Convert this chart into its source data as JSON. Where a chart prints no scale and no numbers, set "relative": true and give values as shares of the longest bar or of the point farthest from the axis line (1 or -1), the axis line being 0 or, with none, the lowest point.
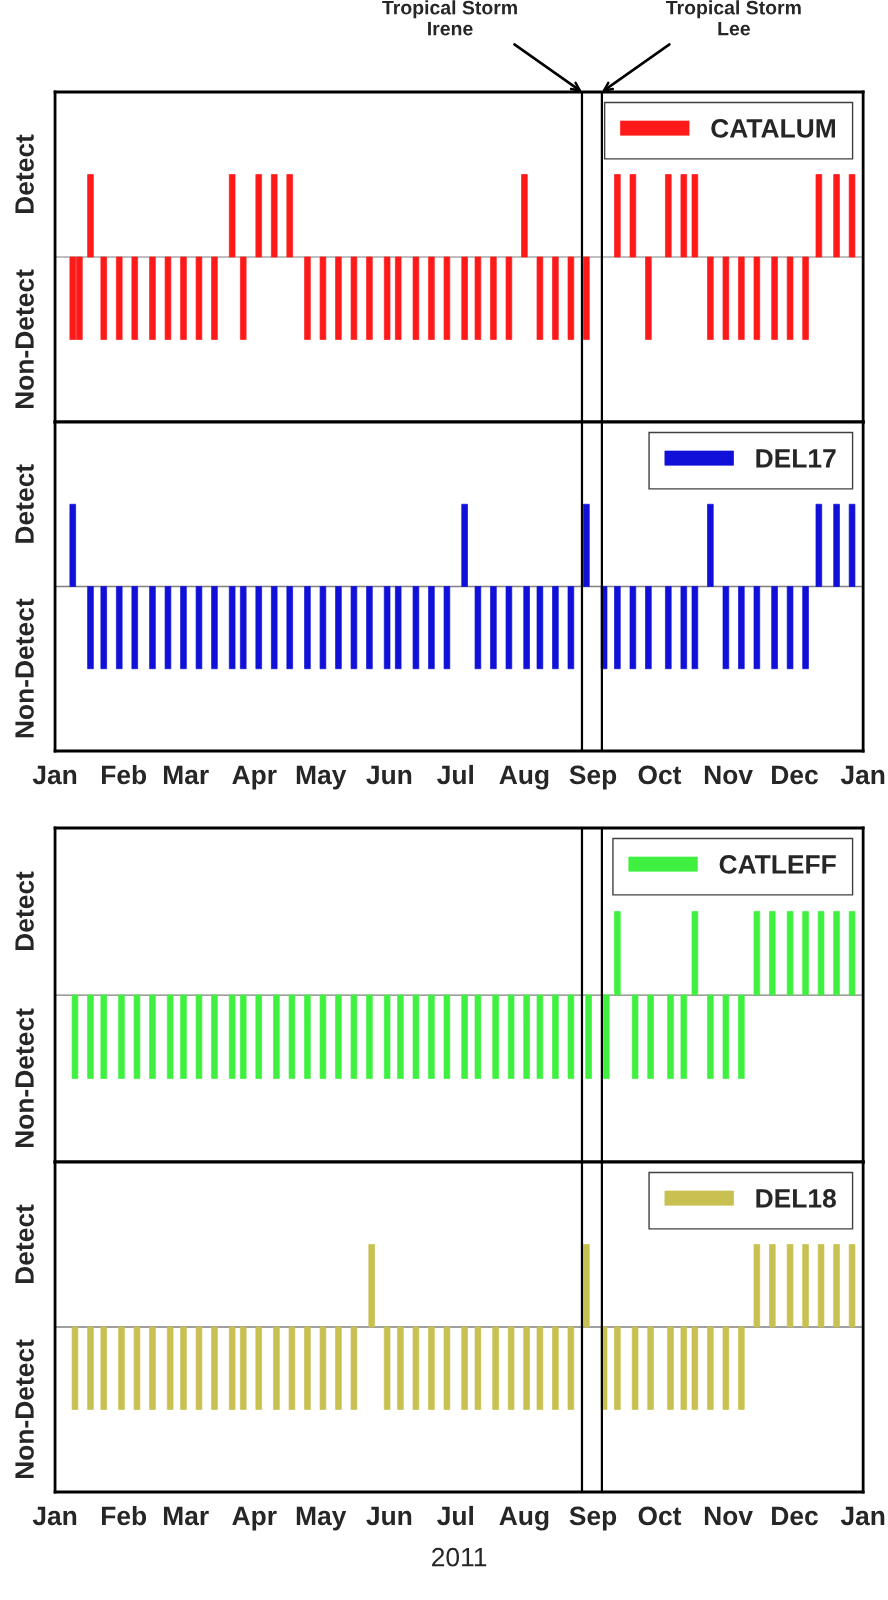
{
  "chart_data": [
    {
      "type": "bar",
      "relative": true,
      "x": [
        "2011-01-09",
        "2011-01-12",
        "2011-01-17",
        "2011-01-23",
        "2011-01-30",
        "2011-02-06",
        "2011-02-14",
        "2011-02-21",
        "2011-02-28",
        "2011-03-07",
        "2011-03-14",
        "2011-03-22",
        "2011-03-27",
        "2011-04-03",
        "2011-04-10",
        "2011-04-17",
        "2011-04-25",
        "2011-05-02",
        "2011-05-09",
        "2011-05-16",
        "2011-05-23",
        "2011-05-31",
        "2011-06-05",
        "2011-06-13",
        "2011-06-20",
        "2011-06-27",
        "2011-07-05",
        "2011-07-11",
        "2011-07-18",
        "2011-07-25",
        "2011-08-01",
        "2011-08-08",
        "2011-08-15",
        "2011-08-22",
        "2011-08-29",
        "2011-09-12",
        "2011-09-19",
        "2011-09-26",
        "2011-10-05",
        "2011-10-12",
        "2011-10-17",
        "2011-10-24",
        "2011-10-31",
        "2011-11-07",
        "2011-11-14",
        "2011-11-22",
        "2011-11-29",
        "2011-12-06",
        "2011-12-12",
        "2011-12-20",
        "2011-12-27"
      ],
      "series": [
        {
          "name": "CATALUM",
          "color": "#ff1a1a",
          "values": [
            -1,
            -1,
            1,
            -1,
            -1,
            -1,
            -1,
            -1,
            -1,
            -1,
            -1,
            1,
            -1,
            1,
            1,
            1,
            -1,
            -1,
            -1,
            -1,
            -1,
            -1,
            -1,
            -1,
            -1,
            -1,
            -1,
            -1,
            -1,
            -1,
            1,
            -1,
            -1,
            -1,
            -1,
            1,
            1,
            -1,
            1,
            1,
            1,
            -1,
            -1,
            -1,
            -1,
            -1,
            -1,
            -1,
            1,
            1,
            1
          ]
        }
      ],
      "xlim": [
        "2011-01-01",
        "2012-01-01"
      ],
      "annotations": [
        "Detect",
        "Non-Detect"
      ],
      "ref_lines": [
        {
          "axis": "x",
          "value": "2011-08-27",
          "label": "Tropical Storm\nIrene",
          "color": "#000000"
        },
        {
          "axis": "x",
          "value": "2011-09-05",
          "label": "Tropical Storm\nLee",
          "color": "#000000"
        }
      ],
      "legend": "top right",
      "tick_labels": false
    },
    {
      "type": "bar",
      "relative": true,
      "x": [
        "2011-01-09",
        "2011-01-17",
        "2011-01-23",
        "2011-01-30",
        "2011-02-06",
        "2011-02-14",
        "2011-02-21",
        "2011-02-28",
        "2011-03-07",
        "2011-03-14",
        "2011-03-22",
        "2011-03-27",
        "2011-04-03",
        "2011-04-10",
        "2011-04-17",
        "2011-04-25",
        "2011-05-02",
        "2011-05-09",
        "2011-05-16",
        "2011-05-23",
        "2011-05-31",
        "2011-06-05",
        "2011-06-13",
        "2011-06-20",
        "2011-06-27",
        "2011-07-05",
        "2011-07-11",
        "2011-07-18",
        "2011-07-25",
        "2011-08-02",
        "2011-08-08",
        "2011-08-15",
        "2011-08-22",
        "2011-08-29",
        "2011-09-06",
        "2011-09-12",
        "2011-09-19",
        "2011-09-26",
        "2011-10-05",
        "2011-10-12",
        "2011-10-17",
        "2011-10-24",
        "2011-10-31",
        "2011-11-07",
        "2011-11-14",
        "2011-11-22",
        "2011-11-29",
        "2011-12-06",
        "2011-12-12",
        "2011-12-20",
        "2011-12-27"
      ],
      "series": [
        {
          "name": "DEL17",
          "color": "#1010d8",
          "values": [
            1,
            -1,
            -1,
            -1,
            -1,
            -1,
            -1,
            -1,
            -1,
            -1,
            -1,
            -1,
            -1,
            -1,
            -1,
            -1,
            -1,
            -1,
            -1,
            -1,
            -1,
            -1,
            -1,
            -1,
            -1,
            1,
            -1,
            -1,
            -1,
            -1,
            -1,
            -1,
            -1,
            1,
            -1,
            -1,
            -1,
            -1,
            -1,
            -1,
            -1,
            1,
            -1,
            -1,
            -1,
            -1,
            -1,
            -1,
            1,
            1,
            1
          ]
        }
      ],
      "xlim": [
        "2011-01-01",
        "2012-01-01"
      ],
      "xticks": [
        {
          "value": "2011-01-01",
          "label": "Jan"
        },
        {
          "value": "2011-02-01",
          "label": "Feb"
        },
        {
          "value": "2011-03-01",
          "label": "Mar"
        },
        {
          "value": "2011-04-01",
          "label": "Apr"
        },
        {
          "value": "2011-05-01",
          "label": "May"
        },
        {
          "value": "2011-06-01",
          "label": "Jun"
        },
        {
          "value": "2011-07-01",
          "label": "Jul"
        },
        {
          "value": "2011-08-01",
          "label": "Aug"
        },
        {
          "value": "2011-09-01",
          "label": "Sep"
        },
        {
          "value": "2011-10-01",
          "label": "Oct"
        },
        {
          "value": "2011-11-01",
          "label": "Nov"
        },
        {
          "value": "2011-12-01",
          "label": "Dec"
        },
        {
          "value": "2012-01-01",
          "label": "Jan"
        }
      ],
      "annotations": [
        "Detect",
        "Non-Detect"
      ],
      "ref_lines": [
        {
          "axis": "x",
          "value": "2011-08-27",
          "color": "#000000"
        },
        {
          "axis": "x",
          "value": "2011-09-05",
          "color": "#000000"
        }
      ],
      "legend": "top right",
      "tick_labels": "x"
    },
    {
      "type": "bar",
      "relative": true,
      "x": [
        "2011-01-10",
        "2011-01-17",
        "2011-01-23",
        "2011-01-31",
        "2011-02-07",
        "2011-02-14",
        "2011-02-22",
        "2011-02-28",
        "2011-03-07",
        "2011-03-14",
        "2011-03-22",
        "2011-03-27",
        "2011-04-03",
        "2011-04-11",
        "2011-04-18",
        "2011-04-25",
        "2011-05-02",
        "2011-05-09",
        "2011-05-16",
        "2011-05-23",
        "2011-05-31",
        "2011-06-06",
        "2011-06-13",
        "2011-06-20",
        "2011-06-27",
        "2011-07-05",
        "2011-07-11",
        "2011-07-19",
        "2011-07-26",
        "2011-08-02",
        "2011-08-08",
        "2011-08-15",
        "2011-08-22",
        "2011-08-30",
        "2011-09-07",
        "2011-09-12",
        "2011-09-20",
        "2011-09-27",
        "2011-10-06",
        "2011-10-12",
        "2011-10-17",
        "2011-10-24",
        "2011-10-31",
        "2011-11-07",
        "2011-11-14",
        "2011-11-21",
        "2011-11-29",
        "2011-12-06",
        "2011-12-13",
        "2011-12-20",
        "2011-12-27"
      ],
      "series": [
        {
          "name": "CATLEFF",
          "color": "#40f040",
          "values": [
            -1,
            -1,
            -1,
            -1,
            -1,
            -1,
            -1,
            -1,
            -1,
            -1,
            -1,
            -1,
            -1,
            -1,
            -1,
            -1,
            -1,
            -1,
            -1,
            -1,
            -1,
            -1,
            -1,
            -1,
            -1,
            -1,
            -1,
            -1,
            -1,
            -1,
            -1,
            -1,
            -1,
            -1,
            -1,
            1,
            -1,
            -1,
            -1,
            -1,
            1,
            -1,
            -1,
            -1,
            1,
            1,
            1,
            1,
            1,
            1,
            1
          ]
        }
      ],
      "xlim": [
        "2011-01-01",
        "2012-01-01"
      ],
      "annotations": [
        "Detect",
        "Non-Detect"
      ],
      "ref_lines": [
        {
          "axis": "x",
          "value": "2011-08-27",
          "color": "#000000"
        },
        {
          "axis": "x",
          "value": "2011-09-05",
          "color": "#000000"
        }
      ],
      "legend": "top right",
      "tick_labels": false
    },
    {
      "type": "bar",
      "relative": true,
      "x": [
        "2011-01-10",
        "2011-01-17",
        "2011-01-23",
        "2011-01-31",
        "2011-02-07",
        "2011-02-14",
        "2011-02-22",
        "2011-02-28",
        "2011-03-07",
        "2011-03-14",
        "2011-03-22",
        "2011-03-27",
        "2011-04-03",
        "2011-04-11",
        "2011-04-18",
        "2011-04-25",
        "2011-05-02",
        "2011-05-09",
        "2011-05-16",
        "2011-05-24",
        "2011-05-31",
        "2011-06-06",
        "2011-06-13",
        "2011-06-20",
        "2011-06-27",
        "2011-07-05",
        "2011-07-11",
        "2011-07-19",
        "2011-07-26",
        "2011-08-02",
        "2011-08-08",
        "2011-08-15",
        "2011-08-22",
        "2011-08-29",
        "2011-09-06",
        "2011-09-12",
        "2011-09-20",
        "2011-09-27",
        "2011-10-06",
        "2011-10-12",
        "2011-10-17",
        "2011-10-24",
        "2011-10-31",
        "2011-11-07",
        "2011-11-14",
        "2011-11-21",
        "2011-11-29",
        "2011-12-06",
        "2011-12-13",
        "2011-12-20",
        "2011-12-27"
      ],
      "series": [
        {
          "name": "DEL18",
          "color": "#c8c050",
          "values": [
            -1,
            -1,
            -1,
            -1,
            -1,
            -1,
            -1,
            -1,
            -1,
            -1,
            -1,
            -1,
            -1,
            -1,
            -1,
            -1,
            -1,
            -1,
            -1,
            1,
            -1,
            -1,
            -1,
            -1,
            -1,
            -1,
            -1,
            -1,
            -1,
            -1,
            -1,
            -1,
            -1,
            1,
            -1,
            -1,
            -1,
            -1,
            -1,
            -1,
            -1,
            -1,
            -1,
            -1,
            1,
            1,
            1,
            1,
            1,
            1,
            1
          ]
        }
      ],
      "xlim": [
        "2011-01-01",
        "2012-01-01"
      ],
      "xticks": [
        {
          "value": "2011-01-01",
          "label": "Jan"
        },
        {
          "value": "2011-02-01",
          "label": "Feb"
        },
        {
          "value": "2011-03-01",
          "label": "Mar"
        },
        {
          "value": "2011-04-01",
          "label": "Apr"
        },
        {
          "value": "2011-05-01",
          "label": "May"
        },
        {
          "value": "2011-06-01",
          "label": "Jun"
        },
        {
          "value": "2011-07-01",
          "label": "Jul"
        },
        {
          "value": "2011-08-01",
          "label": "Aug"
        },
        {
          "value": "2011-09-01",
          "label": "Sep"
        },
        {
          "value": "2011-10-01",
          "label": "Oct"
        },
        {
          "value": "2011-11-01",
          "label": "Nov"
        },
        {
          "value": "2011-12-01",
          "label": "Dec"
        },
        {
          "value": "2012-01-01",
          "label": "Jan"
        }
      ],
      "annotations": [
        "Detect",
        "Non-Detect"
      ],
      "ref_lines": [
        {
          "axis": "x",
          "value": "2011-08-27",
          "color": "#000000"
        },
        {
          "axis": "x",
          "value": "2011-09-05",
          "color": "#000000"
        }
      ],
      "legend": "top right",
      "tick_labels": "x",
      "xlabel": "2011"
    }
  ]
}
